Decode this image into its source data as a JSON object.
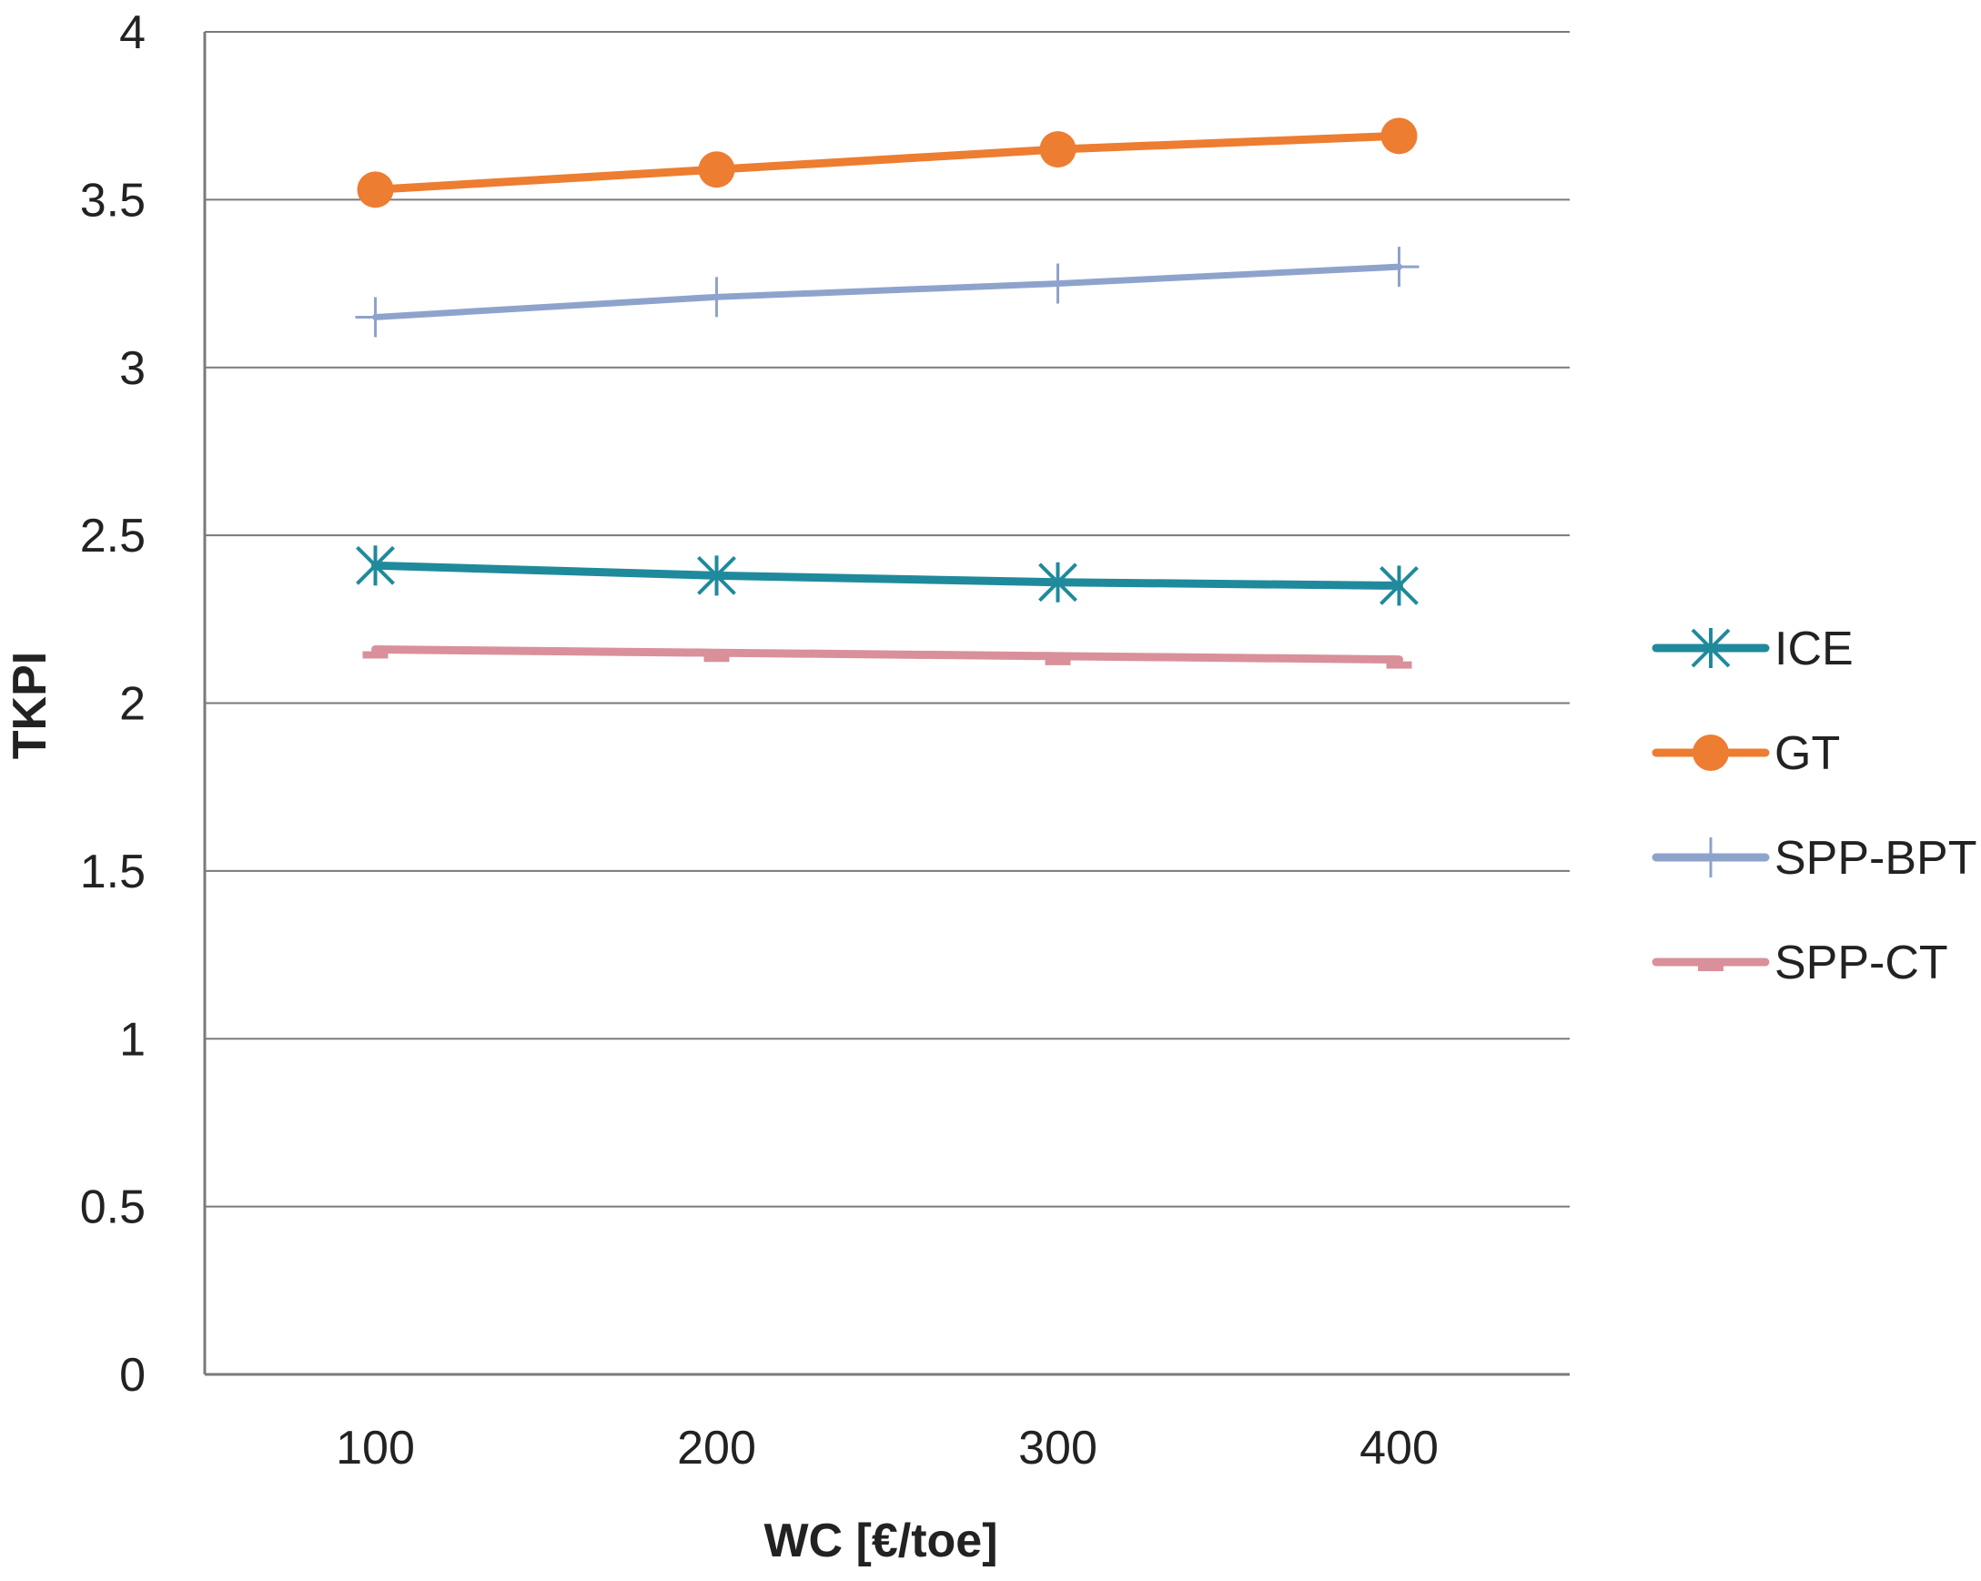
{
  "chart_data": {
    "type": "line",
    "title": "",
    "xlabel": "WC [€/toe]",
    "ylabel": "TKPI",
    "categories": [
      "100",
      "200",
      "300",
      "400"
    ],
    "ylim": [
      0,
      4
    ],
    "yticks": [
      "0",
      "0.5",
      "1",
      "1.5",
      "2",
      "2.5",
      "3",
      "3.5",
      "4"
    ],
    "grid": true,
    "legend_position": "right",
    "series": [
      {
        "name": "ICE",
        "color": "#1f8a9c",
        "marker": "asterisk",
        "values": [
          2.41,
          2.38,
          2.36,
          2.35
        ]
      },
      {
        "name": "GT",
        "color": "#ed7d31",
        "marker": "circle",
        "values": [
          3.53,
          3.59,
          3.65,
          3.69
        ]
      },
      {
        "name": "SPP-BPT",
        "color": "#8ea3cc",
        "marker": "plus",
        "values": [
          3.15,
          3.21,
          3.25,
          3.3
        ]
      },
      {
        "name": "SPP-CT",
        "color": "#d9909a",
        "marker": "dash",
        "values": [
          2.16,
          2.15,
          2.14,
          2.13
        ]
      }
    ]
  }
}
